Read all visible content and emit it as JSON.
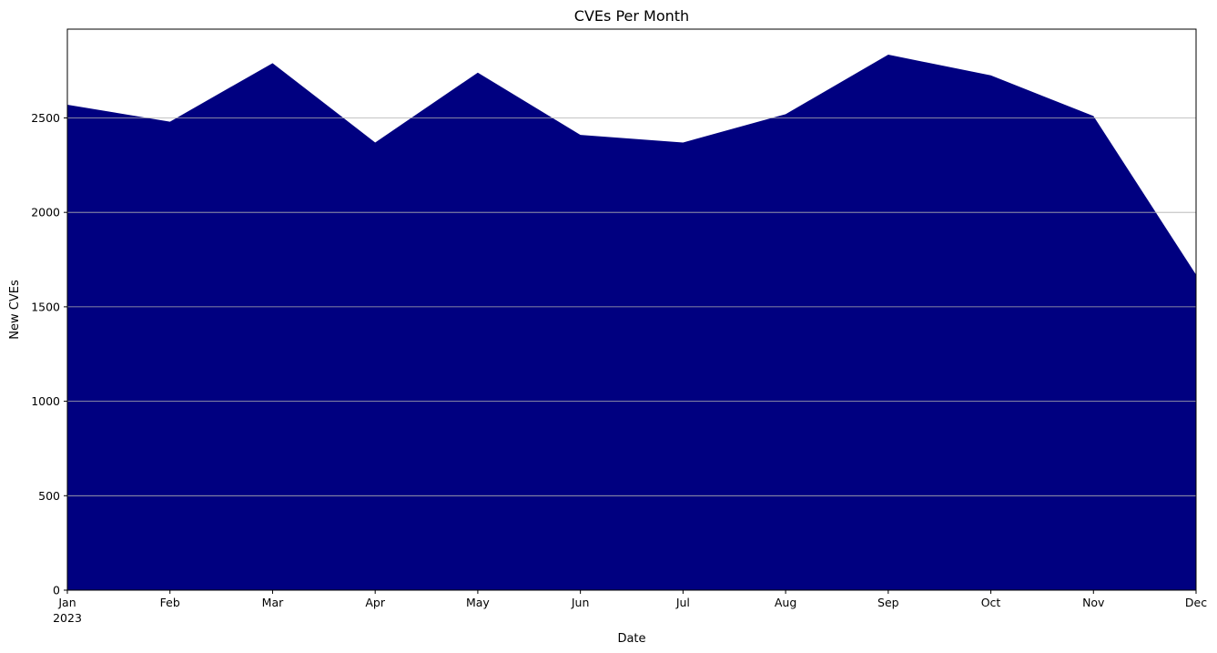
{
  "chart_data": {
    "type": "area",
    "title": "CVEs Per Month",
    "xlabel": "Date",
    "ylabel": "New CVEs",
    "x": [
      "Jan",
      "Feb",
      "Mar",
      "Apr",
      "May",
      "Jun",
      "Jul",
      "Aug",
      "Sep",
      "Oct",
      "Nov",
      "Dec"
    ],
    "x_sublabel": "2023",
    "values": [
      2570,
      2480,
      2790,
      2370,
      2740,
      2410,
      2370,
      2520,
      2835,
      2725,
      2510,
      1670
    ],
    "ylim": [
      0,
      2970
    ],
    "yticks": [
      0,
      500,
      1000,
      1500,
      2000,
      2500
    ],
    "grid": "y",
    "fill_color": "#000080"
  }
}
